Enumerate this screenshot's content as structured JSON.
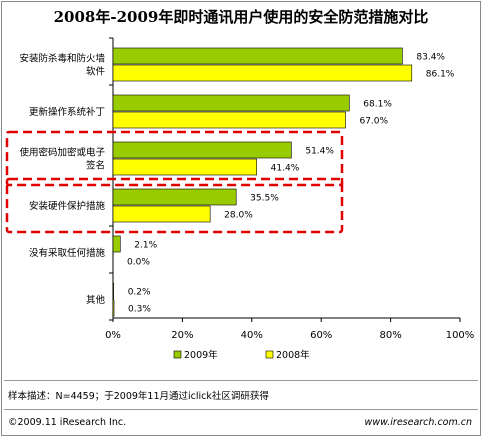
{
  "page": {
    "title": "2008年-2009年即时通讯用户使用的安全防范措施对比",
    "note": "样本描述：N=4459；于2009年11月通过iclick社区调研获得",
    "footer_left": "©2009.11 iResearch Inc.",
    "footer_right": "www.iresearch.com.cn"
  },
  "colors": {
    "series_2009": "#99cc00",
    "series_2008": "#ffff00",
    "highlight_box": "#e00000"
  },
  "chart_data": {
    "type": "bar",
    "orientation": "horizontal",
    "categories": [
      [
        "安装防杀毒和防火墙",
        "软件"
      ],
      [
        "更新操作系统补丁"
      ],
      [
        "使用密码加密或电子",
        "签名"
      ],
      [
        "安装硬件保护措施"
      ],
      [
        "没有采取任何措施"
      ],
      [
        "其他"
      ]
    ],
    "series": [
      {
        "name": "2009年",
        "values": [
          83.4,
          68.1,
          51.4,
          35.5,
          2.1,
          0.2
        ],
        "labels": [
          "83.4%",
          "68.1%",
          "51.4%",
          "35.5%",
          "2.1%",
          "0.2%"
        ]
      },
      {
        "name": "2008年",
        "values": [
          86.1,
          67.0,
          41.4,
          28.0,
          0.0,
          0.3
        ],
        "labels": [
          "86.1%",
          "67.0%",
          "41.4%",
          "28.0%",
          "0.0%",
          "0.3%"
        ]
      }
    ],
    "xlim": [
      0,
      100
    ],
    "xticks": [
      "0%",
      "20%",
      "40%",
      "60%",
      "80%",
      "100%"
    ],
    "highlighted_categories": [
      2,
      3
    ],
    "legend": "bottom",
    "grid": false
  }
}
